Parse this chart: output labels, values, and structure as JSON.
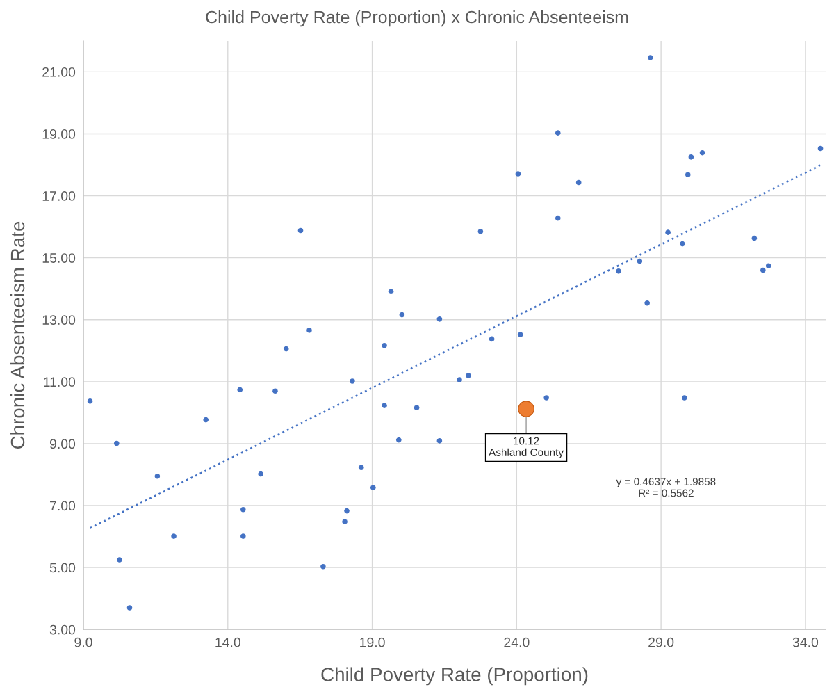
{
  "chart_data": {
    "type": "scatter",
    "title": "Child Poverty Rate (Proportion) x Chronic Absenteeism",
    "xlabel": "Child Poverty Rate (Proportion)",
    "ylabel": "Chronic Absenteeism Rate",
    "xlim": [
      9,
      34.7
    ],
    "ylim": [
      3,
      22
    ],
    "xticks": [
      {
        "value": 9,
        "label": "9.0"
      },
      {
        "value": 14,
        "label": "14.0"
      },
      {
        "value": 19,
        "label": "19.0"
      },
      {
        "value": 24,
        "label": "24.0"
      },
      {
        "value": 29,
        "label": "29.0"
      },
      {
        "value": 34,
        "label": "34.0"
      }
    ],
    "yticks": [
      {
        "value": 3,
        "label": "3.00"
      },
      {
        "value": 5,
        "label": "5.00"
      },
      {
        "value": 7,
        "label": "7.00"
      },
      {
        "value": 9,
        "label": "9.00"
      },
      {
        "value": 11,
        "label": "11.00"
      },
      {
        "value": 13,
        "label": "13.00"
      },
      {
        "value": 15,
        "label": "15.00"
      },
      {
        "value": 17,
        "label": "17.00"
      },
      {
        "value": 19,
        "label": "19.00"
      },
      {
        "value": 21,
        "label": "21.00"
      }
    ],
    "grid": true,
    "marker": "circle",
    "series": [
      {
        "color": "#4472c4",
        "x": [
          16.52,
          19.65,
          28.63,
          25.43,
          24.05,
          26.15,
          30.04,
          30.43,
          29.93,
          34.52,
          25.43,
          22.75,
          29.24,
          29.74,
          32.23,
          28.26,
          27.53,
          32.53,
          32.72,
          28.52,
          20.03,
          21.33,
          16.82,
          16.02,
          19.42,
          18.31,
          14.42,
          15.64,
          9.23,
          19.42,
          20.54,
          13.24,
          10.15,
          19.92,
          21.33,
          18.62,
          19.03,
          11.56,
          15.14,
          14.53,
          18.12,
          18.05,
          12.13,
          14.53,
          23.14,
          24.13,
          22.02,
          22.33,
          25.03,
          29.81,
          10.25,
          10.6,
          17.3
        ],
        "values": [
          15.88,
          13.91,
          21.46,
          19.03,
          17.71,
          17.43,
          18.25,
          18.39,
          17.68,
          18.53,
          16.28,
          15.85,
          15.82,
          15.45,
          15.63,
          14.89,
          14.57,
          14.6,
          14.74,
          13.54,
          13.16,
          13.02,
          12.66,
          12.06,
          12.17,
          11.02,
          10.74,
          10.7,
          10.37,
          10.23,
          10.16,
          9.77,
          9.01,
          9.12,
          9.09,
          8.23,
          7.58,
          7.95,
          8.02,
          6.87,
          6.83,
          6.48,
          6.01,
          6.01,
          12.38,
          12.52,
          11.06,
          11.2,
          10.48,
          10.48,
          5.25,
          3.7,
          5.03
        ]
      },
      {
        "color": "#ed7d31",
        "x": [
          24.33
        ],
        "values": [
          10.12
        ]
      },
      {
        "type": "line",
        "color": "#4472c4",
        "line_style": "dotted",
        "marker": "none",
        "x": [
          9.23,
          34.52
        ],
        "values": [
          6.27,
          17.99
        ]
      }
    ],
    "annotations": [
      {
        "text": "10.12\nAshland County",
        "x": 24.33,
        "y": 10.12
      },
      "y = 0.4637x + 1.9858\nR² = 0.5562"
    ]
  }
}
